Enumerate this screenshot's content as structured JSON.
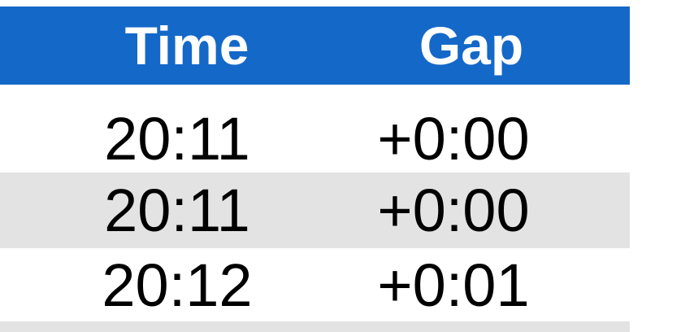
{
  "table": {
    "header": [
      "Time",
      "Gap"
    ],
    "rows": [
      [
        "20:11",
        "+0:00"
      ],
      [
        "20:11",
        "+0:00"
      ],
      [
        "20:12",
        "+0:01"
      ]
    ]
  }
}
